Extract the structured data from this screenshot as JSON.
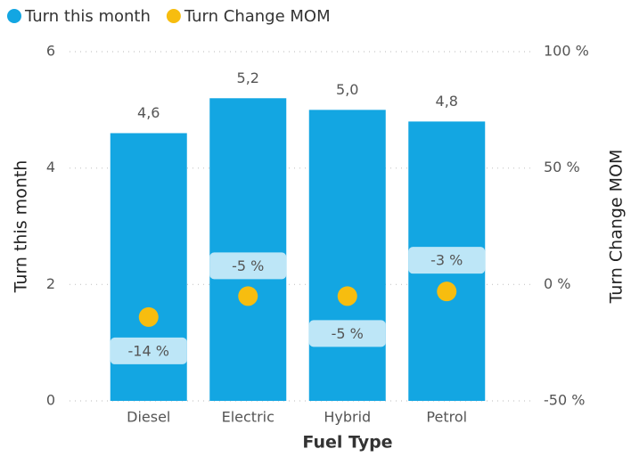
{
  "chart_data": {
    "type": "bar",
    "xlabel": "Fuel Type",
    "ylabel": "Turn this month",
    "y2label": "Turn Change MOM",
    "categories": [
      "Diesel",
      "Electric",
      "Hybrid",
      "Petrol"
    ],
    "series": [
      {
        "name": "Turn this month",
        "type": "bar",
        "color": "#13a6e2",
        "values": [
          4.6,
          5.2,
          5.0,
          4.8
        ],
        "value_labels": [
          "4,6",
          "5,2",
          "5,0",
          "4,8"
        ]
      },
      {
        "name": "Turn Change MOM",
        "type": "scatter",
        "axis": "y2",
        "color": "#f7bd0f",
        "values": [
          -14,
          -5,
          -5,
          -3
        ],
        "value_labels": [
          "-14 %",
          "-5 %",
          "-5 %",
          "-3 %"
        ]
      }
    ],
    "ylim": [
      0,
      6
    ],
    "yticks": [
      0,
      2,
      4,
      6
    ],
    "y2lim": [
      -50,
      100
    ],
    "y2ticks": [
      {
        "value": -50,
        "label": "-50 %"
      },
      {
        "value": 0,
        "label": "0 %"
      },
      {
        "value": 50,
        "label": "50 %"
      },
      {
        "value": 100,
        "label": "100 %"
      }
    ],
    "grid": true,
    "legend": "top-left"
  }
}
